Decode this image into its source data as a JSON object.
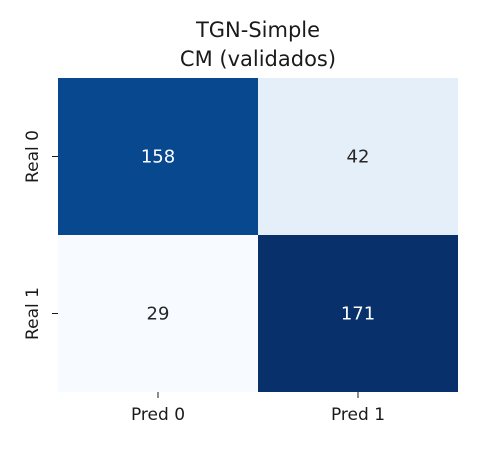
{
  "chart_data": {
    "type": "heatmap",
    "title_lines": [
      "TGN-Simple",
      "CM (validados)"
    ],
    "x_tick_labels": [
      "Pred 0",
      "Pred 1"
    ],
    "y_tick_labels": [
      "Real 0",
      "Real 1"
    ],
    "values": [
      [
        158,
        42
      ],
      [
        29,
        171
      ]
    ],
    "colormap": "Blues",
    "color_range": [
      29,
      171
    ],
    "colorbar": false,
    "colors": {
      "low": "#f7fbff",
      "high": "#08306b",
      "text_dark": "#262626",
      "text_light": "#ffffff"
    }
  }
}
